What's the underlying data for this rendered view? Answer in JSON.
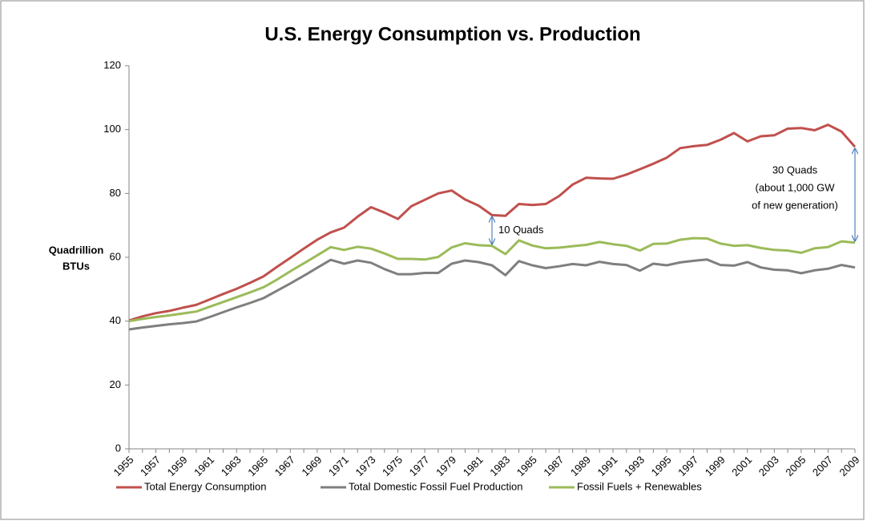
{
  "chart_data": {
    "type": "line",
    "title": "U.S. Energy Consumption vs. Production",
    "y_label": [
      "Quadrillion",
      "BTUs"
    ],
    "categories": [
      "1955",
      null,
      "1957",
      null,
      "1959",
      null,
      "1961",
      null,
      "1963",
      null,
      "1965",
      null,
      "1967",
      null,
      "1969",
      null,
      "1971",
      null,
      "1973",
      null,
      "1975",
      null,
      "1977",
      null,
      "1979",
      null,
      "1981",
      null,
      "1983",
      null,
      "1985",
      null,
      "1987",
      null,
      "1989",
      null,
      "1991",
      null,
      "1993",
      null,
      "1995",
      null,
      "1997",
      null,
      "1999",
      null,
      "2001",
      null,
      "2003",
      null,
      "2005",
      null,
      "2007",
      null,
      "2009"
    ],
    "series": [
      {
        "name": "Total Energy Consumption",
        "color": "#c0504d",
        "values": [
          40.2,
          41.5,
          42.5,
          43.2,
          44.2,
          45.1,
          46.8,
          48.5,
          50.1,
          52.0,
          54.0,
          57.0,
          59.8,
          62.7,
          65.5,
          67.8,
          69.3,
          72.7,
          75.7,
          74.0,
          72.0,
          76.0,
          78.0,
          80.0,
          80.9,
          78.1,
          76.2,
          73.2,
          73.0,
          76.7,
          76.4,
          76.7,
          79.2,
          82.8,
          84.9,
          84.7,
          84.6,
          85.9,
          87.6,
          89.3,
          91.2,
          94.2,
          94.8,
          95.2,
          96.8,
          98.9,
          96.3,
          97.9,
          98.2,
          100.3,
          100.5,
          99.8,
          101.5,
          99.4,
          94.6
        ]
      },
      {
        "name": "Total Domestic Fossil Fuel Production",
        "color": "#7f7f7f",
        "values": [
          37.4,
          38.0,
          38.5,
          39.0,
          39.4,
          39.9,
          41.3,
          42.8,
          44.3,
          45.7,
          47.2,
          49.5,
          51.8,
          54.2,
          56.7,
          59.2,
          58.0,
          59.0,
          58.3,
          56.3,
          54.7,
          54.7,
          55.1,
          55.1,
          58.0,
          59.0,
          58.5,
          57.5,
          54.4,
          58.8,
          57.5,
          56.6,
          57.2,
          57.9,
          57.5,
          58.6,
          57.9,
          57.6,
          55.8,
          58.0,
          57.5,
          58.4,
          58.9,
          59.3,
          57.6,
          57.4,
          58.5,
          56.8,
          56.1,
          55.9,
          55.0,
          55.9,
          56.4,
          57.6,
          56.8
        ]
      },
      {
        "name": "Fossil Fuels + Renewables",
        "color": "#9bbb59",
        "values": [
          40.0,
          40.7,
          41.3,
          41.8,
          42.4,
          43.0,
          44.5,
          46.0,
          47.5,
          49.0,
          50.6,
          53.0,
          55.6,
          58.1,
          60.6,
          63.2,
          62.3,
          63.3,
          62.7,
          61.2,
          59.5,
          59.5,
          59.3,
          60.1,
          63.1,
          64.4,
          63.8,
          63.6,
          61.0,
          65.3,
          63.7,
          62.8,
          63.0,
          63.5,
          63.9,
          64.8,
          64.1,
          63.6,
          62.1,
          64.2,
          64.3,
          65.5,
          66.0,
          65.9,
          64.3,
          63.6,
          63.8,
          62.9,
          62.3,
          62.1,
          61.4,
          62.8,
          63.2,
          65.0,
          64.6
        ]
      }
    ],
    "ylim": [
      0,
      120
    ],
    "yticks": [
      0,
      20,
      40,
      60,
      80,
      100,
      120
    ],
    "annotations": [
      {
        "text": [
          "10 Quads"
        ],
        "index": 27
      },
      {
        "text": [
          "30 Quads",
          "(about 1,000 GW",
          "of new generation)"
        ],
        "index": 54
      }
    ],
    "legend": "bottom"
  }
}
